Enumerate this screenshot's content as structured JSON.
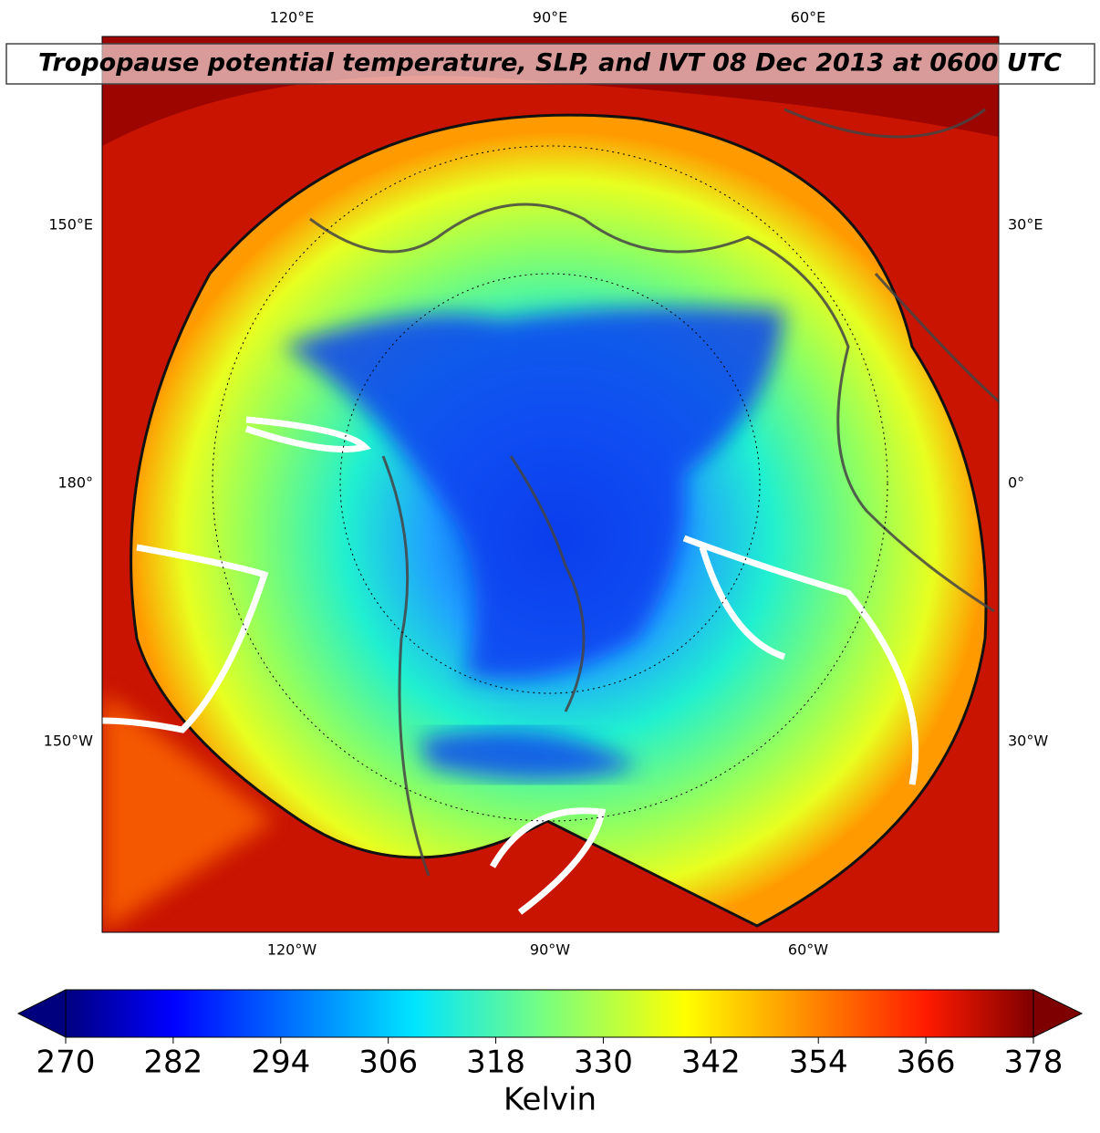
{
  "title": "Tropopause potential temperature, SLP, and IVT 08 Dec 2013 at 0600 UTC",
  "map": {
    "top_labels": [
      "120°E",
      "90°E",
      "60°E"
    ],
    "bottom_labels": [
      "120°W",
      "90°W",
      "60°W"
    ],
    "left_labels": [
      "150°E",
      "180°",
      "150°W"
    ],
    "right_labels": [
      "30°E",
      "0°",
      "30°W"
    ]
  },
  "colorbar": {
    "label": "Kelvin",
    "range": [
      270,
      378
    ],
    "ticks": [
      270,
      282,
      294,
      306,
      318,
      330,
      342,
      354,
      366,
      378
    ]
  }
}
